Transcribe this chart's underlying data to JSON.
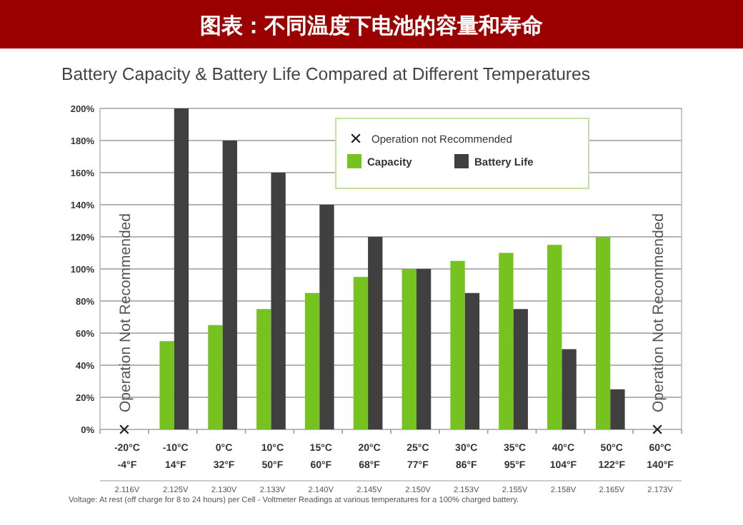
{
  "chart_data": {
    "type": "bar",
    "title": "图表：不同温度下电池的容量和寿命",
    "subtitle": "Battery Capacity & Battery Life Compared at Different Temperatures",
    "categories": [
      "-20°C\n-4°F",
      "-10°C\n14°F",
      "0°C\n32°F",
      "10°C\n50°F",
      "15°C\n60°F",
      "20°C\n68°F",
      "25°C\n77°F",
      "30°C\n86°F",
      "35°C\n95°F",
      "40°C\n104°F",
      "50°C\n122°F",
      "60°C\n140°F"
    ],
    "series": [
      {
        "name": "Capacity",
        "color": "#76c320",
        "values": [
          null,
          55,
          65,
          75,
          85,
          95,
          100,
          105,
          110,
          115,
          120,
          null
        ]
      },
      {
        "name": "Battery Life",
        "color": "#404040",
        "values": [
          null,
          200,
          180,
          160,
          140,
          120,
          100,
          85,
          75,
          50,
          25,
          null
        ]
      },
      {
        "name": "Operation not Recommended",
        "type": "scatter",
        "marker": "cross",
        "color": "#222222",
        "x": [
          "-20°C\n-4°F",
          "60°C\n140°F"
        ],
        "values": [
          0,
          0
        ]
      }
    ],
    "ylim": [
      0,
      200
    ],
    "yticks": [
      {
        "value": 0,
        "label": "0%"
      },
      {
        "value": 20,
        "label": "20%"
      },
      {
        "value": 40,
        "label": "40%"
      },
      {
        "value": 60,
        "label": "60%"
      },
      {
        "value": 80,
        "label": "80%"
      },
      {
        "value": 100,
        "label": "100%"
      },
      {
        "value": 120,
        "label": "120%"
      },
      {
        "value": 140,
        "label": "140%"
      },
      {
        "value": 160,
        "label": "160%"
      },
      {
        "value": 180,
        "label": "180%"
      },
      {
        "value": 200,
        "label": "200%"
      }
    ],
    "grid": "y",
    "legend": "top",
    "annotations": [
      "2.116V",
      "2.125V",
      "2.130V",
      "2.133V",
      "2.140V",
      "2.145V",
      "2.150V",
      "2.153V",
      "2.155V",
      "2.158V",
      "2.165V",
      "2.173V",
      "Voltage:  At rest (off charge for 8 to 24 hours) per Cell - Voltmeter Readings at various temperatures for a 100% charged battery.",
      "Operation Not Recommended",
      "Operation Not Recommended"
    ]
  }
}
